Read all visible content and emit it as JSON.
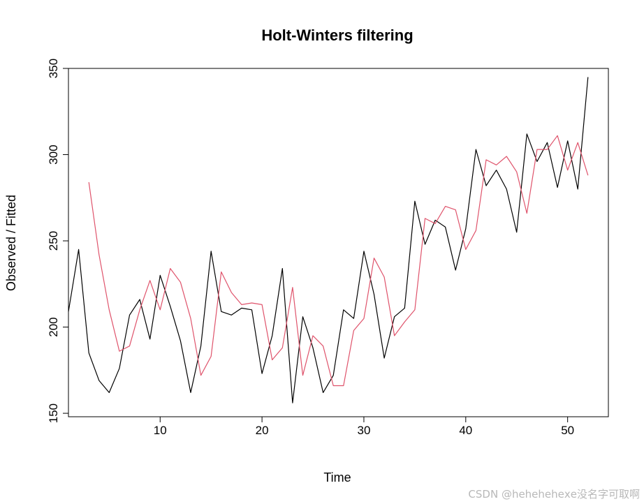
{
  "chart_data": {
    "type": "line",
    "title": "Holt-Winters filtering",
    "xlabel": "Time",
    "ylabel": "Observed / Fitted",
    "xlim": [
      1,
      54
    ],
    "ylim": [
      148,
      350
    ],
    "xticks": [
      10,
      20,
      30,
      40,
      50
    ],
    "yticks": [
      150,
      200,
      250,
      300,
      350
    ],
    "grid": false,
    "legend": "none",
    "series": [
      {
        "color": "#000000",
        "x": [
          1,
          2,
          3,
          4,
          5,
          6,
          7,
          8,
          9,
          10,
          11,
          12,
          13,
          14,
          15,
          16,
          17,
          18,
          19,
          20,
          21,
          22,
          23,
          24,
          25,
          26,
          27,
          28,
          29,
          30,
          31,
          32,
          33,
          34,
          35,
          36,
          37,
          38,
          39,
          40,
          41,
          42,
          43,
          44,
          45,
          46,
          47,
          48,
          49,
          50,
          51,
          52
        ],
        "values": [
          209,
          245,
          185,
          169,
          162,
          176,
          207,
          216,
          193,
          230,
          212,
          192,
          162,
          189,
          244,
          209,
          207,
          211,
          210,
          173,
          195,
          234,
          156,
          206,
          188,
          162,
          172,
          210,
          205,
          244,
          219,
          182,
          206,
          211,
          273,
          248,
          262,
          258,
          233,
          257,
          303,
          282,
          291,
          280,
          255,
          312,
          296,
          307,
          281,
          308,
          280,
          345
        ]
      },
      {
        "color": "#DF536B",
        "x": [
          3,
          4,
          5,
          6,
          7,
          8,
          9,
          10,
          11,
          12,
          13,
          14,
          15,
          16,
          17,
          18,
          19,
          20,
          21,
          22,
          23,
          24,
          25,
          26,
          27,
          28,
          29,
          30,
          31,
          32,
          33,
          34,
          35,
          36,
          37,
          38,
          39,
          40,
          41,
          42,
          43,
          44,
          45,
          46,
          47,
          48,
          49,
          50,
          51,
          52
        ],
        "values": [
          284,
          242,
          210,
          186,
          189,
          210,
          227,
          210,
          234,
          226,
          205,
          172,
          183,
          232,
          220,
          213,
          214,
          213,
          181,
          188,
          223,
          172,
          195,
          189,
          166,
          166,
          198,
          205,
          240,
          229,
          195,
          203,
          210,
          263,
          260,
          270,
          268,
          245,
          256,
          297,
          294,
          299,
          290,
          266,
          303,
          303,
          311,
          291,
          307,
          288
        ]
      }
    ]
  },
  "watermark": "CSDN @heheheheхе没名字可取啊"
}
